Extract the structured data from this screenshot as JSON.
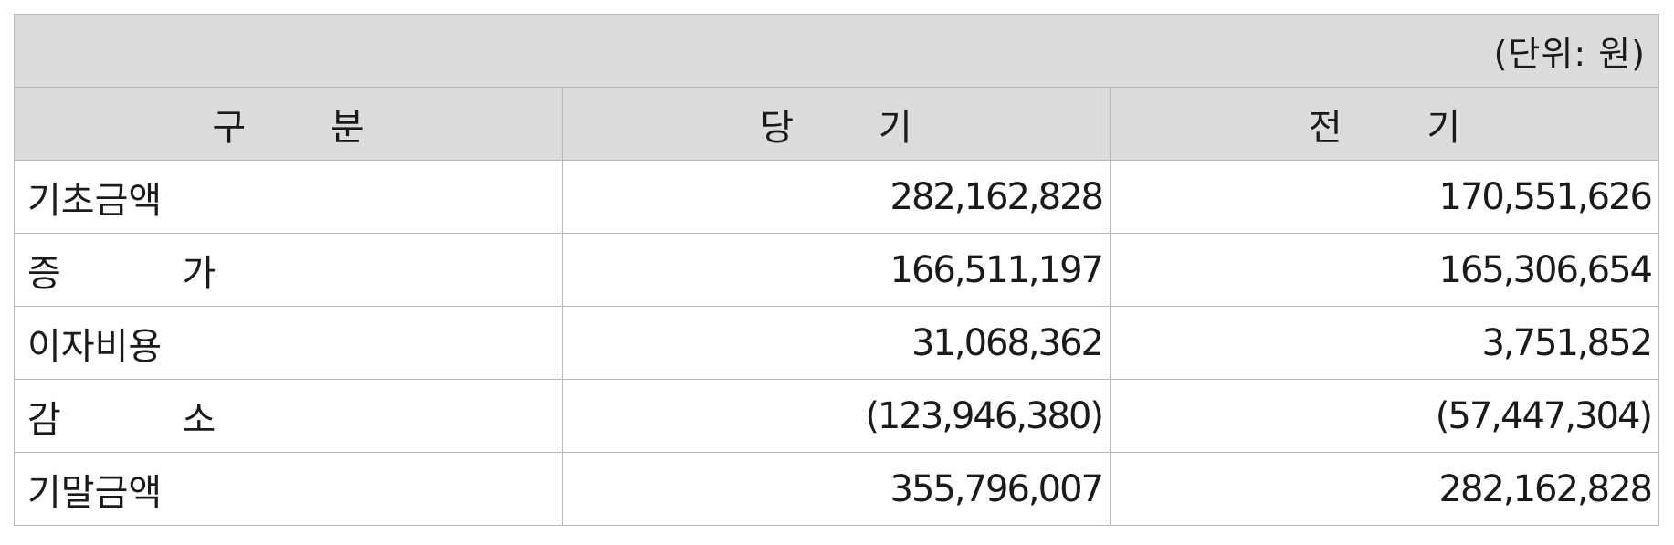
{
  "unit_label": "(단위: 원)",
  "columns": [
    "구 분",
    "당 기",
    "전 기"
  ],
  "rows": [
    {
      "label": "기초금액",
      "current": "282,162,828",
      "prior": "170,551,626"
    },
    {
      "label": "증 가",
      "current": "166,511,197",
      "prior": "165,306,654"
    },
    {
      "label": "이자비용",
      "current": "31,068,362",
      "prior": "3,751,852"
    },
    {
      "label": "감 소",
      "current": "(123,946,380)",
      "prior": "(57,447,304)"
    },
    {
      "label": "기말금액",
      "current": "355,796,007",
      "prior": "282,162,828"
    }
  ]
}
